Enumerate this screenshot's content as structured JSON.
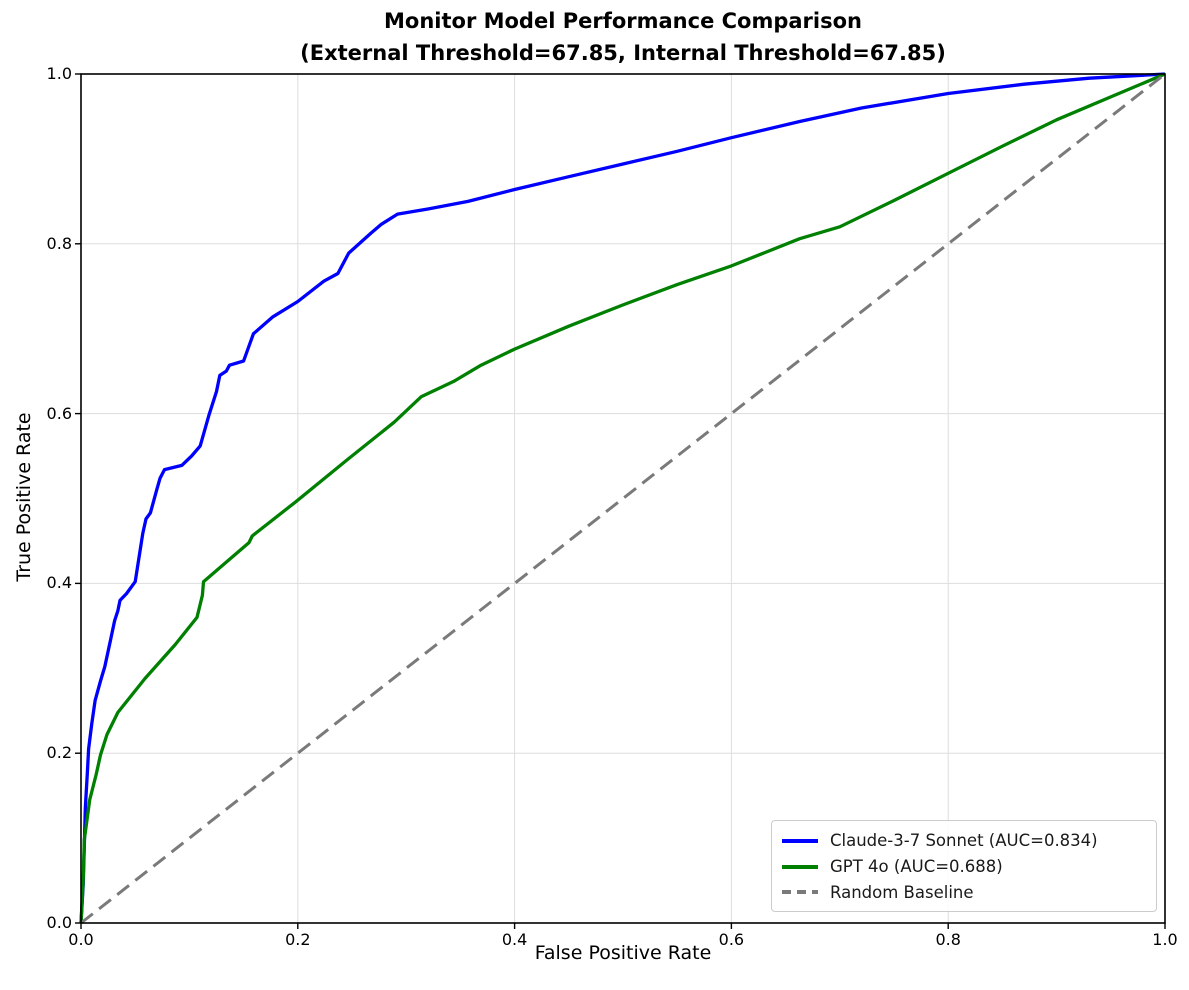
{
  "title": {
    "line1": "Monitor Model Performance Comparison",
    "line2": "(External Threshold=67.85, Internal Threshold=67.85)"
  },
  "chart_data": {
    "type": "line",
    "title": "Monitor Model Performance Comparison (External Threshold=67.85, Internal Threshold=67.85)",
    "xlabel": "False Positive Rate",
    "ylabel": "True Positive Rate",
    "xlim": [
      0.0,
      1.0
    ],
    "ylim": [
      0.0,
      1.0
    ],
    "x_ticks": [
      0.0,
      0.2,
      0.4,
      0.6,
      0.8,
      1.0
    ],
    "y_ticks": [
      0.0,
      0.2,
      0.4,
      0.6,
      0.8,
      1.0
    ],
    "x_tick_labels": [
      "0.0",
      "0.2",
      "0.4",
      "0.6",
      "0.8",
      "1.0"
    ],
    "y_tick_labels": [
      "0.0",
      "0.2",
      "0.4",
      "0.6",
      "0.8",
      "1.0"
    ],
    "grid": true,
    "legend_position": "lower right",
    "series": [
      {
        "name": "Claude-3-7 Sonnet (AUC=0.834)",
        "auc": 0.834,
        "color": "#0000ff",
        "style": "solid",
        "points": [
          [
            0.0,
            0.0
          ],
          [
            0.002,
            0.045
          ],
          [
            0.003,
            0.09
          ],
          [
            0.004,
            0.135
          ],
          [
            0.006,
            0.18
          ],
          [
            0.007,
            0.205
          ],
          [
            0.01,
            0.235
          ],
          [
            0.013,
            0.262
          ],
          [
            0.018,
            0.285
          ],
          [
            0.022,
            0.302
          ],
          [
            0.027,
            0.332
          ],
          [
            0.031,
            0.356
          ],
          [
            0.034,
            0.368
          ],
          [
            0.036,
            0.38
          ],
          [
            0.042,
            0.388
          ],
          [
            0.05,
            0.402
          ],
          [
            0.057,
            0.459
          ],
          [
            0.06,
            0.476
          ],
          [
            0.064,
            0.483
          ],
          [
            0.07,
            0.511
          ],
          [
            0.073,
            0.524
          ],
          [
            0.077,
            0.534
          ],
          [
            0.093,
            0.539
          ],
          [
            0.102,
            0.55
          ],
          [
            0.11,
            0.562
          ],
          [
            0.118,
            0.598
          ],
          [
            0.125,
            0.626
          ],
          [
            0.128,
            0.645
          ],
          [
            0.134,
            0.65
          ],
          [
            0.137,
            0.657
          ],
          [
            0.15,
            0.662
          ],
          [
            0.159,
            0.694
          ],
          [
            0.177,
            0.714
          ],
          [
            0.2,
            0.732
          ],
          [
            0.224,
            0.756
          ],
          [
            0.237,
            0.765
          ],
          [
            0.247,
            0.789
          ],
          [
            0.267,
            0.812
          ],
          [
            0.277,
            0.823
          ],
          [
            0.292,
            0.835
          ],
          [
            0.32,
            0.841
          ],
          [
            0.357,
            0.85
          ],
          [
            0.4,
            0.864
          ],
          [
            0.45,
            0.879
          ],
          [
            0.5,
            0.894
          ],
          [
            0.55,
            0.909
          ],
          [
            0.6,
            0.925
          ],
          [
            0.663,
            0.944
          ],
          [
            0.72,
            0.96
          ],
          [
            0.8,
            0.977
          ],
          [
            0.87,
            0.988
          ],
          [
            0.93,
            0.995
          ],
          [
            1.0,
            1.0
          ]
        ]
      },
      {
        "name": "GPT 4o (AUC=0.688)",
        "auc": 0.688,
        "color": "#008000",
        "style": "solid",
        "points": [
          [
            0.0,
            0.0
          ],
          [
            0.002,
            0.05
          ],
          [
            0.003,
            0.098
          ],
          [
            0.008,
            0.145
          ],
          [
            0.014,
            0.175
          ],
          [
            0.018,
            0.198
          ],
          [
            0.024,
            0.222
          ],
          [
            0.034,
            0.248
          ],
          [
            0.059,
            0.288
          ],
          [
            0.087,
            0.328
          ],
          [
            0.107,
            0.36
          ],
          [
            0.112,
            0.386
          ],
          [
            0.113,
            0.402
          ],
          [
            0.135,
            0.426
          ],
          [
            0.155,
            0.448
          ],
          [
            0.158,
            0.456
          ],
          [
            0.198,
            0.496
          ],
          [
            0.246,
            0.546
          ],
          [
            0.289,
            0.59
          ],
          [
            0.314,
            0.62
          ],
          [
            0.344,
            0.638
          ],
          [
            0.369,
            0.657
          ],
          [
            0.4,
            0.676
          ],
          [
            0.45,
            0.703
          ],
          [
            0.5,
            0.728
          ],
          [
            0.55,
            0.752
          ],
          [
            0.6,
            0.774
          ],
          [
            0.663,
            0.806
          ],
          [
            0.7,
            0.82
          ],
          [
            0.75,
            0.851
          ],
          [
            0.8,
            0.883
          ],
          [
            0.85,
            0.915
          ],
          [
            0.9,
            0.946
          ],
          [
            0.95,
            0.973
          ],
          [
            1.0,
            1.0
          ]
        ]
      },
      {
        "name": "Random Baseline",
        "color": "#7a7a7a",
        "style": "dashed",
        "points": [
          [
            0.0,
            0.0
          ],
          [
            1.0,
            1.0
          ]
        ]
      }
    ]
  },
  "style": {
    "grid_color": "#dddddd",
    "spine_color": "#000000",
    "background": "#ffffff"
  }
}
